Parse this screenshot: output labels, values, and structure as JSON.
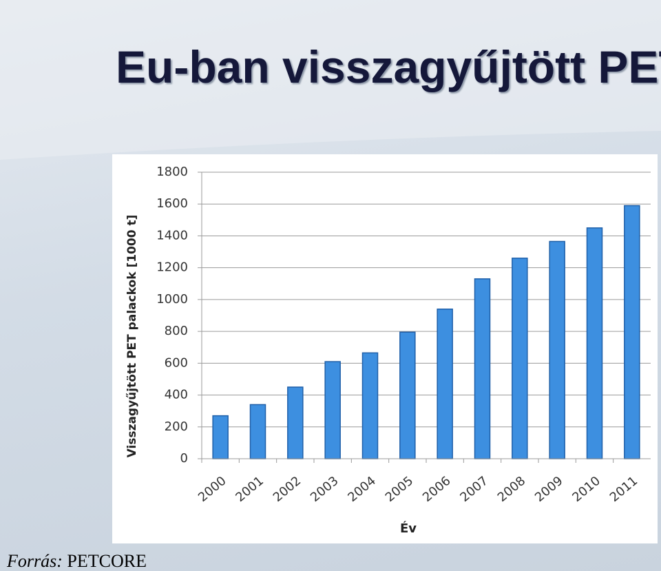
{
  "chart_data": {
    "type": "bar",
    "title": "Eu-ban visszagyűjtött PET",
    "x_label": "Év",
    "y_label": "Visszagyűjtött PET palackok [1000 t]",
    "categories": [
      "2000",
      "2001",
      "2002",
      "2003",
      "2004",
      "2005",
      "2006",
      "2007",
      "2008",
      "2009",
      "2010",
      "2011"
    ],
    "values": [
      270,
      340,
      450,
      610,
      665,
      795,
      940,
      1130,
      1260,
      1365,
      1450,
      1590
    ],
    "color": "#3d8fe0",
    "ylim": [
      0,
      1800
    ],
    "yticks": [
      0,
      200,
      400,
      600,
      800,
      1000,
      1200,
      1400,
      1600,
      1800
    ],
    "grid": true
  },
  "source": {
    "label": "Forrás:",
    "value": "PETCORE"
  }
}
